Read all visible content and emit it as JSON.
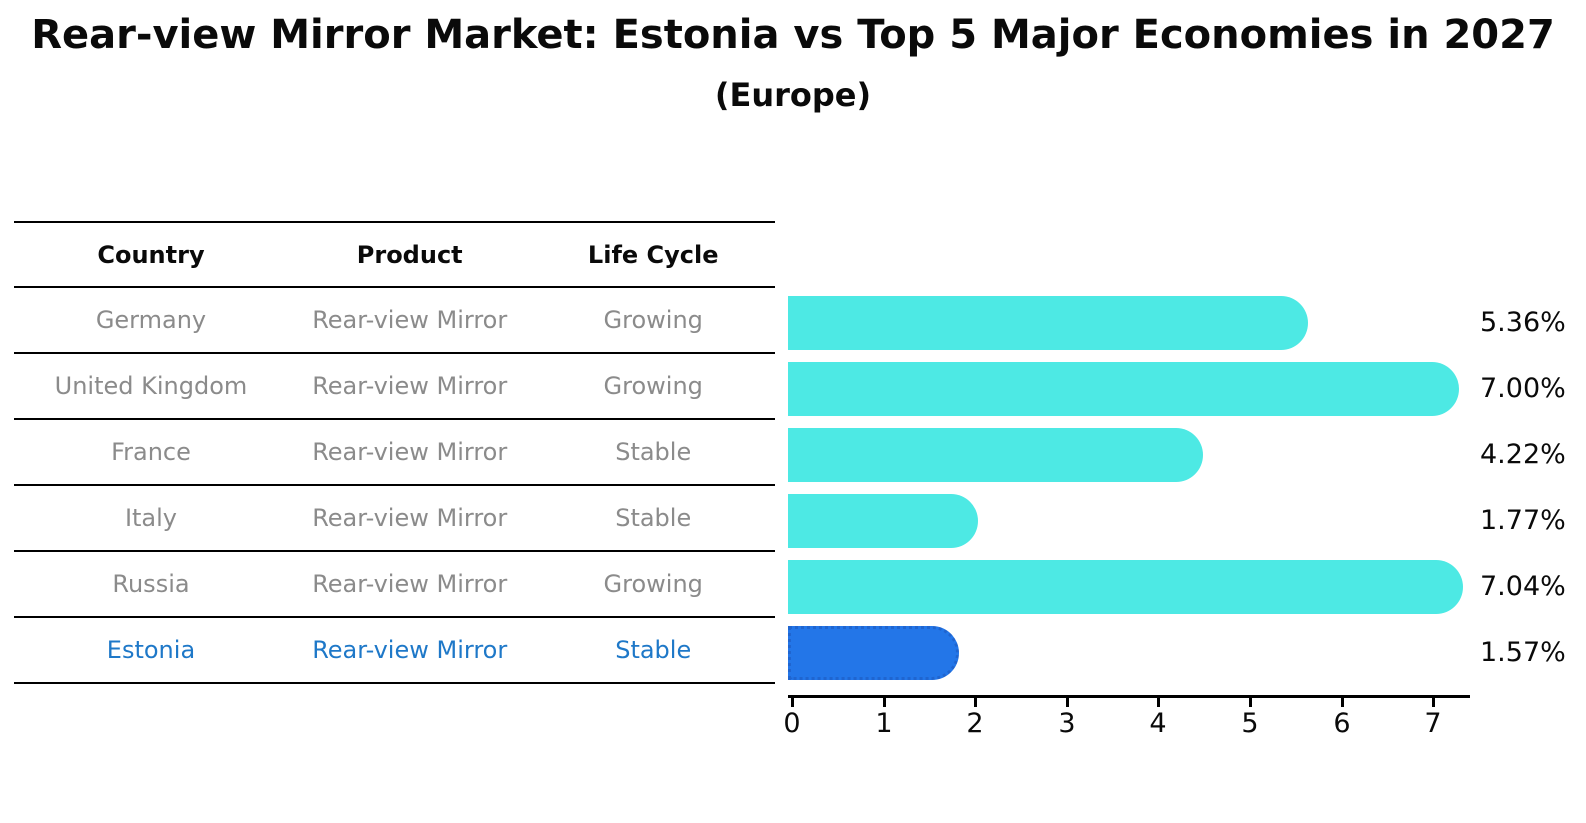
{
  "title": "Rear-view Mirror Market: Estonia vs Top 5 Major Economies in 2027",
  "subtitle": "(Europe)",
  "table": {
    "headers": [
      "Country",
      "Product",
      "Life Cycle"
    ],
    "rows": [
      {
        "country": "Germany",
        "product": "Rear-view Mirror",
        "life_cycle": "Growing",
        "highlight": false
      },
      {
        "country": "United Kingdom",
        "product": "Rear-view Mirror",
        "life_cycle": "Growing",
        "highlight": false
      },
      {
        "country": "France",
        "product": "Rear-view Mirror",
        "life_cycle": "Stable",
        "highlight": false
      },
      {
        "country": "Italy",
        "product": "Rear-view Mirror",
        "life_cycle": "Stable",
        "highlight": false
      },
      {
        "country": "Russia",
        "product": "Rear-view Mirror",
        "life_cycle": "Growing",
        "highlight": false
      },
      {
        "country": "Estonia",
        "product": "Rear-view Mirror",
        "life_cycle": "Stable",
        "highlight": true
      }
    ]
  },
  "chart_data": {
    "type": "bar",
    "orientation": "horizontal",
    "title": "Rear-view Mirror Market: Estonia vs Top 5 Major Economies in 2027",
    "subtitle": "(Europe)",
    "categories": [
      "Germany",
      "United Kingdom",
      "France",
      "Italy",
      "Russia",
      "Estonia"
    ],
    "values": [
      5.36,
      7.0,
      4.22,
      1.77,
      7.04,
      1.57
    ],
    "value_labels": [
      "5.36%",
      "7.00%",
      "4.22%",
      "1.77%",
      "7.04%",
      "1.57%"
    ],
    "x_ticks": [
      "0",
      "1",
      "2",
      "3",
      "4",
      "5",
      "6",
      "7"
    ],
    "xlim": [
      0,
      7.4
    ],
    "grid": false,
    "legend": false,
    "highlight_index": 5,
    "bar_color": "#4DE9E4",
    "highlight_bar_color": "#2376E8",
    "highlight_bar_border_color": "#1F65D0",
    "highlight_text_color": "#1E78C8",
    "row_text_color": "#8B8B8B"
  }
}
